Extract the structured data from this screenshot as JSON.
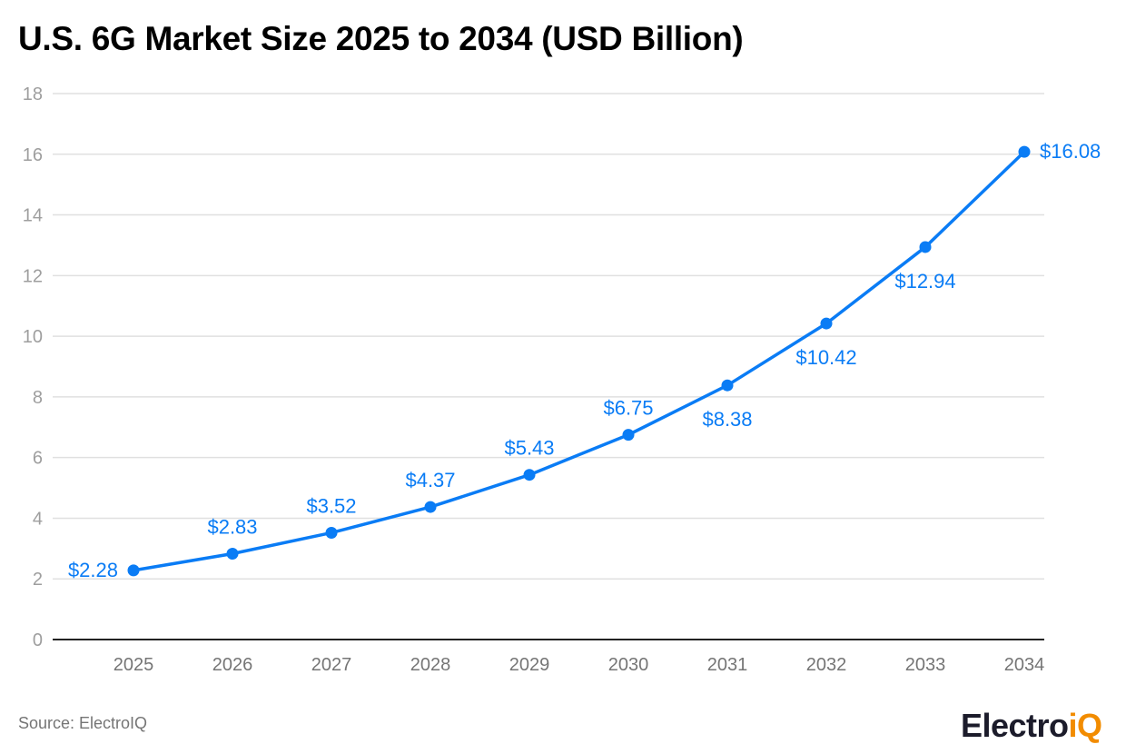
{
  "chart_data": {
    "type": "line",
    "title": "U.S. 6G Market Size 2025 to 2034 (USD Billion)",
    "xlabel": "",
    "ylabel": "",
    "categories": [
      "2025",
      "2026",
      "2027",
      "2028",
      "2029",
      "2030",
      "2031",
      "2032",
      "2033",
      "2034"
    ],
    "values": [
      2.28,
      2.83,
      3.52,
      4.37,
      5.43,
      6.75,
      8.38,
      10.42,
      12.94,
      16.08
    ],
    "data_labels": [
      "$2.28",
      "$2.83",
      "$3.52",
      "$4.37",
      "$5.43",
      "$6.75",
      "$8.38",
      "$10.42",
      "$12.94",
      "$16.08"
    ],
    "ylim": [
      0,
      18
    ],
    "yticks": [
      0,
      2,
      4,
      6,
      8,
      10,
      12,
      14,
      16,
      18
    ],
    "grid": true,
    "color": "#0a7cf5"
  },
  "source": "Source: ElectroIQ",
  "logo": {
    "main": "Electro",
    "accent": "iQ"
  }
}
